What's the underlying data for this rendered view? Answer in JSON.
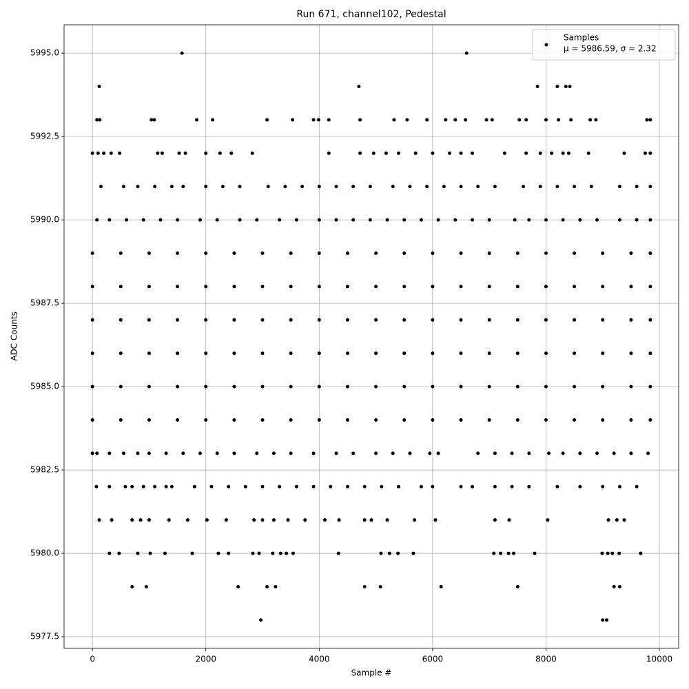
{
  "chart_data": {
    "type": "scatter",
    "title": "Run 671, channel102, Pedestal",
    "x_label": "Sample #",
    "y_label": "ADC Counts",
    "xlim": [
      -500,
      10340
    ],
    "ylim": [
      5977.15,
      5995.85
    ],
    "xticks": [
      0,
      2000,
      4000,
      6000,
      8000,
      10000
    ],
    "yticks": [
      5977.5,
      {
        "value": 5980,
        "label": "5980.0"
      },
      5982.5,
      {
        "value": 5985,
        "label": "5985.0"
      },
      5987.5,
      {
        "value": 5990,
        "label": "5990.0"
      },
      5992.5,
      {
        "value": 5995,
        "label": "5995.0"
      }
    ],
    "grid": true,
    "legend": "upper right",
    "annotation": "μ = 5986.59, σ = 2.32",
    "series": [
      {
        "name": "Samples",
        "color": "#000000",
        "x": [
          1580,
          6600,
          120,
          4700,
          7850,
          8200,
          8350,
          8420,
          80,
          130,
          1040,
          1090,
          1840,
          2120,
          3080,
          3530,
          3900,
          3990,
          4170,
          4720,
          5320,
          5550,
          5900,
          6230,
          6400,
          6580,
          6950,
          7050,
          7530,
          7650,
          8000,
          8220,
          8440,
          8780,
          8880,
          9780,
          9840,
          0,
          100,
          200,
          330,
          480,
          1150,
          1230,
          1530,
          1640,
          2000,
          2250,
          2450,
          2820,
          4170,
          4720,
          4960,
          5180,
          5400,
          5700,
          6000,
          6300,
          6500,
          6700,
          7270,
          7650,
          7900,
          8100,
          8300,
          8400,
          8750,
          9380,
          9750,
          9840,
          150,
          550,
          800,
          1100,
          1400,
          1600,
          2000,
          2300,
          2600,
          3100,
          3400,
          3700,
          4000,
          4300,
          4600,
          4900,
          5300,
          5600,
          5900,
          6200,
          6500,
          6800,
          7100,
          7600,
          7900,
          8200,
          8500,
          8800,
          9300,
          9600,
          9840,
          80,
          300,
          600,
          900,
          1200,
          1500,
          1900,
          2200,
          2600,
          2900,
          3300,
          3600,
          4000,
          4300,
          4600,
          4900,
          5200,
          5500,
          5800,
          6100,
          6400,
          6700,
          7000,
          7450,
          7700,
          8000,
          8300,
          8600,
          8900,
          9300,
          9600,
          9840,
          0,
          500,
          1000,
          1500,
          2000,
          2500,
          3000,
          3500,
          4000,
          4500,
          5000,
          5500,
          6000,
          6500,
          7000,
          7500,
          8000,
          8500,
          9000,
          9500,
          9840,
          0,
          500,
          1000,
          1500,
          2000,
          2500,
          3000,
          3500,
          4000,
          4500,
          5000,
          5500,
          6000,
          6500,
          7000,
          7500,
          8000,
          8500,
          9000,
          9500,
          9840,
          0,
          500,
          1000,
          1500,
          2000,
          2500,
          3000,
          3500,
          4000,
          4500,
          5000,
          5500,
          6000,
          6500,
          7000,
          7500,
          8000,
          8500,
          9000,
          9500,
          9840,
          0,
          500,
          1000,
          1500,
          2000,
          2500,
          3000,
          3500,
          4000,
          4500,
          5000,
          5500,
          6000,
          6500,
          7000,
          7500,
          8000,
          8500,
          9000,
          9500,
          9840,
          0,
          500,
          1000,
          1500,
          2000,
          2500,
          3000,
          3500,
          4000,
          4500,
          5000,
          5500,
          6000,
          6500,
          7000,
          7500,
          8000,
          8500,
          9000,
          9500,
          9840,
          0,
          500,
          1000,
          1500,
          2000,
          2500,
          3000,
          3500,
          4000,
          4500,
          5000,
          5500,
          6000,
          6500,
          7000,
          7500,
          8000,
          8500,
          9000,
          9500,
          9840,
          0,
          80,
          300,
          550,
          800,
          1000,
          1300,
          1600,
          1900,
          2200,
          2500,
          2900,
          3200,
          3500,
          3900,
          4300,
          4600,
          5000,
          5300,
          5600,
          5950,
          6100,
          6800,
          7100,
          7400,
          7700,
          8050,
          8300,
          8600,
          8900,
          9200,
          9500,
          9800,
          70,
          300,
          580,
          700,
          900,
          1100,
          1300,
          1400,
          1800,
          2100,
          2400,
          2700,
          3000,
          3300,
          3600,
          3900,
          4200,
          4500,
          4800,
          5100,
          5400,
          5800,
          6000,
          6500,
          6700,
          7100,
          7400,
          7700,
          8200,
          8600,
          9000,
          9300,
          9600,
          120,
          340,
          700,
          850,
          1000,
          1350,
          1680,
          2020,
          2360,
          2850,
          3000,
          3200,
          3450,
          3750,
          4100,
          4350,
          4800,
          4920,
          5200,
          5680,
          6050,
          7100,
          7350,
          8030,
          9100,
          9250,
          9380,
          300,
          470,
          800,
          1020,
          1280,
          1760,
          2220,
          2400,
          2830,
          2940,
          3180,
          3320,
          3420,
          3540,
          4340,
          5090,
          5240,
          5390,
          5660,
          7080,
          7200,
          7340,
          7430,
          7800,
          8990,
          9090,
          9170,
          9290,
          9670,
          700,
          950,
          2570,
          3080,
          3230,
          4800,
          5080,
          6150,
          7500,
          9200,
          9300,
          2970,
          9000,
          9070
        ],
        "values": [
          5995,
          5995,
          5994,
          5994,
          5994,
          5994,
          5994,
          5994,
          5993,
          5993,
          5993,
          5993,
          5993,
          5993,
          5993,
          5993,
          5993,
          5993,
          5993,
          5993,
          5993,
          5993,
          5993,
          5993,
          5993,
          5993,
          5993,
          5993,
          5993,
          5993,
          5993,
          5993,
          5993,
          5993,
          5993,
          5993,
          5993,
          5992,
          5992,
          5992,
          5992,
          5992,
          5992,
          5992,
          5992,
          5992,
          5992,
          5992,
          5992,
          5992,
          5992,
          5992,
          5992,
          5992,
          5992,
          5992,
          5992,
          5992,
          5992,
          5992,
          5992,
          5992,
          5992,
          5992,
          5992,
          5992,
          5992,
          5992,
          5992,
          5992,
          5991,
          5991,
          5991,
          5991,
          5991,
          5991,
          5991,
          5991,
          5991,
          5991,
          5991,
          5991,
          5991,
          5991,
          5991,
          5991,
          5991,
          5991,
          5991,
          5991,
          5991,
          5991,
          5991,
          5991,
          5991,
          5991,
          5991,
          5991,
          5991,
          5991,
          5991,
          5990,
          5990,
          5990,
          5990,
          5990,
          5990,
          5990,
          5990,
          5990,
          5990,
          5990,
          5990,
          5990,
          5990,
          5990,
          5990,
          5990,
          5990,
          5990,
          5990,
          5990,
          5990,
          5990,
          5990,
          5990,
          5990,
          5990,
          5990,
          5990,
          5990,
          5990,
          5990,
          5989,
          5989,
          5989,
          5989,
          5989,
          5989,
          5989,
          5989,
          5989,
          5989,
          5989,
          5989,
          5989,
          5989,
          5989,
          5989,
          5989,
          5989,
          5989,
          5989,
          5989,
          5988,
          5988,
          5988,
          5988,
          5988,
          5988,
          5988,
          5988,
          5988,
          5988,
          5988,
          5988,
          5988,
          5988,
          5988,
          5988,
          5988,
          5988,
          5988,
          5988,
          5988,
          5987,
          5987,
          5987,
          5987,
          5987,
          5987,
          5987,
          5987,
          5987,
          5987,
          5987,
          5987,
          5987,
          5987,
          5987,
          5987,
          5987,
          5987,
          5987,
          5987,
          5987,
          5986,
          5986,
          5986,
          5986,
          5986,
          5986,
          5986,
          5986,
          5986,
          5986,
          5986,
          5986,
          5986,
          5986,
          5986,
          5986,
          5986,
          5986,
          5986,
          5986,
          5986,
          5985,
          5985,
          5985,
          5985,
          5985,
          5985,
          5985,
          5985,
          5985,
          5985,
          5985,
          5985,
          5985,
          5985,
          5985,
          5985,
          5985,
          5985,
          5985,
          5985,
          5985,
          5984,
          5984,
          5984,
          5984,
          5984,
          5984,
          5984,
          5984,
          5984,
          5984,
          5984,
          5984,
          5984,
          5984,
          5984,
          5984,
          5984,
          5984,
          5984,
          5984,
          5984,
          5983,
          5983,
          5983,
          5983,
          5983,
          5983,
          5983,
          5983,
          5983,
          5983,
          5983,
          5983,
          5983,
          5983,
          5983,
          5983,
          5983,
          5983,
          5983,
          5983,
          5983,
          5983,
          5983,
          5983,
          5983,
          5983,
          5983,
          5983,
          5983,
          5983,
          5983,
          5983,
          5983,
          5982,
          5982,
          5982,
          5982,
          5982,
          5982,
          5982,
          5982,
          5982,
          5982,
          5982,
          5982,
          5982,
          5982,
          5982,
          5982,
          5982,
          5982,
          5982,
          5982,
          5982,
          5982,
          5982,
          5982,
          5982,
          5982,
          5982,
          5982,
          5982,
          5982,
          5982,
          5982,
          5982,
          5981,
          5981,
          5981,
          5981,
          5981,
          5981,
          5981,
          5981,
          5981,
          5981,
          5981,
          5981,
          5981,
          5981,
          5981,
          5981,
          5981,
          5981,
          5981,
          5981,
          5981,
          5981,
          5981,
          5981,
          5981,
          5981,
          5981,
          5980,
          5980,
          5980,
          5980,
          5980,
          5980,
          5980,
          5980,
          5980,
          5980,
          5980,
          5980,
          5980,
          5980,
          5980,
          5980,
          5980,
          5980,
          5980,
          5980,
          5980,
          5980,
          5980,
          5980,
          5980,
          5980,
          5980,
          5980,
          5980,
          5979,
          5979,
          5979,
          5979,
          5979,
          5979,
          5979,
          5979,
          5979,
          5979,
          5979,
          5978,
          5978,
          5978
        ]
      }
    ]
  }
}
